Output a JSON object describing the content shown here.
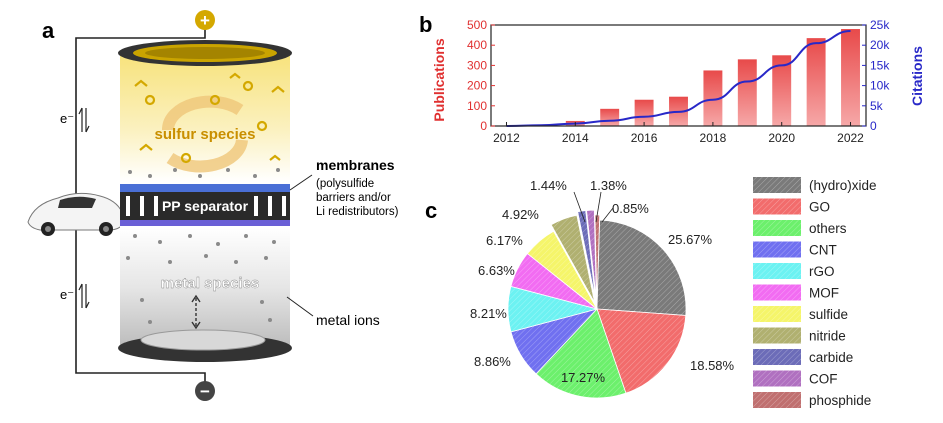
{
  "panel_labels": {
    "a": "a",
    "b": "b",
    "c": "c"
  },
  "schematic": {
    "plus_sign": "+",
    "minus_sign": "−",
    "electron_top": "e⁻",
    "electron_bottom": "e⁻",
    "sulfur_species": "sulfur species",
    "pp_separator": "PP separator",
    "metal_species": "metal species",
    "membranes_title": "membranes",
    "membranes_desc": [
      "(polysulfide",
      "barriers and/or",
      "Li redistributors)"
    ],
    "metal_ions": "metal ions",
    "colors": {
      "sulfur": "#d9b200",
      "membrane": "#4a6fd6",
      "plus": "#d4a800",
      "minus": "#444444"
    }
  },
  "chart_data": [
    {
      "type": "bar",
      "secondary_type": "line",
      "categories": [
        2012,
        2013,
        2014,
        2015,
        2016,
        2017,
        2018,
        2019,
        2020,
        2021,
        2022
      ],
      "x_ticks": [
        "2012",
        "2014",
        "2016",
        "2018",
        "2020",
        "2022"
      ],
      "series": [
        {
          "name": "Publications",
          "axis": "left",
          "color": "#e84a4a",
          "values": [
            2,
            5,
            25,
            85,
            130,
            145,
            275,
            330,
            350,
            435,
            480
          ]
        },
        {
          "name": "Citations",
          "axis": "right",
          "color": "#2828c8",
          "values": [
            0,
            200,
            600,
            1300,
            2300,
            3500,
            6500,
            11000,
            15000,
            20500,
            23500
          ]
        }
      ],
      "ylabel": "Publications",
      "y2label": "Citations",
      "ylim": [
        0,
        500
      ],
      "y2lim": [
        0,
        25000
      ],
      "y_ticks": [
        "0",
        "100",
        "200",
        "300",
        "400",
        "500"
      ],
      "y2_ticks": [
        "0",
        "5k",
        "10k",
        "15k",
        "20k",
        "25k"
      ],
      "grid": false
    },
    {
      "type": "pie",
      "legend_position": "right",
      "slices": [
        {
          "label": "(hydro)xide",
          "value": 25.67,
          "pct_label": "25.67%",
          "color": "#7a7a7a"
        },
        {
          "label": "GO",
          "value": 18.58,
          "pct_label": "18.58%",
          "color": "#f26c6c"
        },
        {
          "label": "others",
          "value": 17.27,
          "pct_label": "17.27%",
          "color": "#6cf06c"
        },
        {
          "label": "CNT",
          "value": 8.86,
          "pct_label": "8.86%",
          "color": "#7070f0"
        },
        {
          "label": "rGO",
          "value": 8.21,
          "pct_label": "8.21%",
          "color": "#6cf2f2"
        },
        {
          "label": "MOF",
          "value": 6.63,
          "pct_label": "6.63%",
          "color": "#f26cf2"
        },
        {
          "label": "sulfide",
          "value": 6.17,
          "pct_label": "6.17%",
          "color": "#f5f56a"
        },
        {
          "label": "nitride",
          "value": 4.92,
          "pct_label": "4.92%",
          "color": "#b0b070"
        },
        {
          "label": "carbide",
          "value": 1.44,
          "pct_label": "1.44%",
          "color": "#6c6cb8"
        },
        {
          "label": "COF",
          "value": 1.38,
          "pct_label": "1.38%",
          "color": "#b070c0"
        },
        {
          "label": "phosphide",
          "value": 0.85,
          "pct_label": "0.85%",
          "color": "#c07070"
        }
      ]
    }
  ]
}
